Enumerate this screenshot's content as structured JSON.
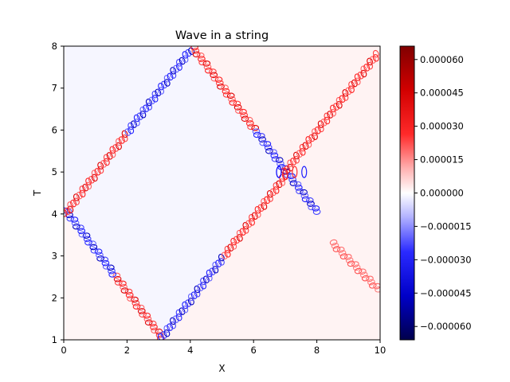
{
  "chart_data": {
    "type": "heatmap",
    "title": "Wave in a string",
    "xlabel": "X",
    "ylabel": "T",
    "xlim": [
      0,
      10
    ],
    "ylim": [
      1,
      8
    ],
    "xticks": [
      0,
      2,
      4,
      6,
      8,
      10
    ],
    "yticks": [
      1,
      2,
      3,
      4,
      5,
      6,
      7,
      8
    ],
    "xtick_labels": [
      "0",
      "2",
      "4",
      "6",
      "8",
      "10"
    ],
    "ytick_labels": [
      "1",
      "2",
      "3",
      "4",
      "5",
      "6",
      "7",
      "8"
    ],
    "colormap": "seismic",
    "colorbar": {
      "range": [
        -6.6e-05,
        6.6e-05
      ],
      "ticks": [
        -6e-05,
        -4.5e-05,
        -3e-05,
        -1.5e-05,
        0,
        1.5e-05,
        3e-05,
        4.5e-05,
        6e-05
      ],
      "tick_labels": [
        "−0.000060",
        "−0.000045",
        "−0.000030",
        "−0.000015",
        "0.000000",
        "0.000015",
        "0.000030",
        "0.000045",
        "0.000060"
      ]
    },
    "regions": [
      {
        "name": "left-of-diamond",
        "polygon": [
          [
            0,
            1
          ],
          [
            3,
            1
          ],
          [
            0,
            4
          ],
          [
            0,
            1
          ]
        ],
        "level": 1.5e-06
      },
      {
        "name": "left-band",
        "polygon": [
          [
            0,
            4
          ],
          [
            4,
            8
          ],
          [
            0,
            8
          ]
        ],
        "level": -1.5e-06
      },
      {
        "name": "diamond-interior",
        "polygon": [
          [
            3,
            1
          ],
          [
            7,
            5
          ],
          [
            4,
            8
          ],
          [
            0,
            4
          ]
        ],
        "level": -1.5e-06
      },
      {
        "name": "right-region",
        "polygon": [
          [
            3,
            1
          ],
          [
            10,
            1
          ],
          [
            10,
            8
          ],
          [
            4,
            8
          ],
          [
            7,
            5
          ]
        ],
        "level": 2e-06
      }
    ],
    "fronts": [
      {
        "name": "front-a",
        "from": [
          3.1,
          1.05
        ],
        "to": [
          0.05,
          4.1
        ],
        "colors": "red-lower, blue-upper"
      },
      {
        "name": "front-b",
        "from": [
          3.1,
          1.05
        ],
        "to": [
          7.0,
          4.9
        ],
        "colors": "blue-lower, red-upper"
      },
      {
        "name": "front-c",
        "from": [
          0.05,
          4.0
        ],
        "to": [
          4.0,
          7.9
        ],
        "colors": "red-lower, blue-upper"
      },
      {
        "name": "front-d",
        "from": [
          4.1,
          7.95
        ],
        "to": [
          8.0,
          4.05
        ],
        "colors": "red-left, blue-right"
      },
      {
        "name": "front-e",
        "from": [
          7.0,
          5.0
        ],
        "to": [
          9.9,
          7.8
        ],
        "colors": "red"
      },
      {
        "name": "front-f",
        "from": [
          8.5,
          3.3
        ],
        "to": [
          9.95,
          2.2
        ],
        "colors": "light-red"
      }
    ]
  }
}
